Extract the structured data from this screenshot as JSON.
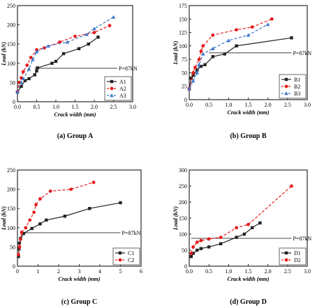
{
  "chart_data": [
    {
      "type": "line",
      "caption": "(a) Group A",
      "xlabel": "Crack width (mm)",
      "ylabel": "Load (kN)",
      "xlim": [
        0,
        3.0
      ],
      "ylim": [
        0,
        250
      ],
      "xticks": [
        "0.0",
        "0.5",
        "1.0",
        "1.5",
        "2.0",
        "2.5",
        "3.0"
      ],
      "yticks": [
        "0",
        "50",
        "100",
        "150",
        "200",
        "250"
      ],
      "reference": {
        "y": 87,
        "label": "P=87kN",
        "x_start": 0.45,
        "x_end": 2.6
      },
      "legend_position": "bottom-right",
      "series": [
        {
          "name": "A1",
          "color": "#222222",
          "dash": "solid",
          "marker": "square",
          "x": [
            0.0,
            0.1,
            0.2,
            0.3,
            0.45,
            0.5,
            0.52,
            0.9,
            1.0,
            1.2,
            1.6,
            1.85,
            2.1
          ],
          "y": [
            25,
            40,
            55,
            60,
            70,
            80,
            88,
            100,
            105,
            125,
            138,
            150,
            168
          ]
        },
        {
          "name": "A2",
          "color": "#e41a1c",
          "dash": "dashed",
          "marker": "circle",
          "x": [
            0.0,
            0.05,
            0.1,
            0.15,
            0.25,
            0.35,
            0.5,
            0.7,
            1.1,
            1.5,
            2.0,
            2.4
          ],
          "y": [
            25,
            50,
            62,
            78,
            95,
            115,
            135,
            140,
            155,
            170,
            180,
            198
          ]
        },
        {
          "name": "A3",
          "color": "#3a75c4",
          "dash": "dashed",
          "marker": "triangle",
          "x": [
            0.0,
            0.1,
            0.15,
            0.3,
            0.4,
            0.5,
            0.8,
            1.3,
            1.8,
            2.0,
            2.5
          ],
          "y": [
            25,
            50,
            60,
            85,
            110,
            130,
            145,
            155,
            175,
            190,
            220
          ]
        }
      ]
    },
    {
      "type": "line",
      "caption": "(b) Group B",
      "xlabel": "Crack width (mm)",
      "ylabel": "Load (kN)",
      "xlim": [
        0,
        3.0
      ],
      "ylim": [
        0,
        175
      ],
      "xticks": [
        "0.0",
        "0.5",
        "1.0",
        "1.5",
        "2.0",
        "2.5",
        "3.0"
      ],
      "yticks": [
        "0",
        "25",
        "50",
        "75",
        "100",
        "125",
        "150",
        "175"
      ],
      "reference": {
        "y": 87,
        "label": "P=87kN",
        "x_start": 0.5,
        "x_end": 2.6
      },
      "legend_position": "bottom-right",
      "series": [
        {
          "name": "B1",
          "color": "#222222",
          "dash": "solid",
          "marker": "square",
          "x": [
            0.0,
            0.05,
            0.1,
            0.2,
            0.3,
            0.4,
            0.6,
            0.9,
            1.2,
            2.6
          ],
          "y": [
            20,
            40,
            45,
            55,
            62,
            65,
            80,
            85,
            100,
            115
          ]
        },
        {
          "name": "B2",
          "color": "#e41a1c",
          "dash": "dashed",
          "marker": "circle",
          "x": [
            0.0,
            0.1,
            0.15,
            0.25,
            0.3,
            0.35,
            0.6,
            1.2,
            1.6,
            2.1
          ],
          "y": [
            20,
            50,
            60,
            75,
            90,
            100,
            120,
            130,
            135,
            150
          ]
        },
        {
          "name": "B3",
          "color": "#3a75c4",
          "dash": "dashed",
          "marker": "triangle",
          "x": [
            0.0,
            0.1,
            0.2,
            0.25,
            0.35,
            0.6,
            1.0,
            1.5,
            2.0
          ],
          "y": [
            20,
            35,
            50,
            65,
            85,
            95,
            110,
            120,
            140
          ]
        }
      ]
    },
    {
      "type": "line",
      "caption": "(c) Group C",
      "xlabel": "Crack width (mm)",
      "ylabel": "Load (kN)",
      "xlim": [
        0,
        6
      ],
      "ylim": [
        0,
        250
      ],
      "xticks": [
        "0",
        "1",
        "2",
        "3",
        "4",
        "5",
        "6"
      ],
      "yticks": [
        "0",
        "50",
        "100",
        "150",
        "200",
        "250"
      ],
      "reference": {
        "y": 87,
        "label": "P=87kN",
        "x_start": 0.2,
        "x_end": 5.0
      },
      "legend_position": "bottom-right",
      "series": [
        {
          "name": "C1",
          "color": "#222222",
          "dash": "solid",
          "marker": "square",
          "x": [
            0.05,
            0.08,
            0.1,
            0.15,
            0.3,
            0.7,
            1.1,
            1.4,
            2.3,
            3.5,
            5.0
          ],
          "y": [
            25,
            45,
            60,
            72,
            85,
            98,
            110,
            120,
            130,
            150,
            165
          ]
        },
        {
          "name": "C2",
          "color": "#e41a1c",
          "dash": "dashed",
          "marker": "circle",
          "x": [
            0.05,
            0.1,
            0.15,
            0.2,
            0.4,
            0.6,
            0.8,
            0.9,
            1.1,
            1.6,
            2.6,
            3.7
          ],
          "y": [
            30,
            50,
            70,
            88,
            100,
            120,
            140,
            160,
            175,
            195,
            200,
            218
          ]
        }
      ]
    },
    {
      "type": "line",
      "caption": "(d) Group D",
      "xlabel": "Crack width (mm)",
      "ylabel": "Load (kN)",
      "xlim": [
        0,
        3.0
      ],
      "ylim": [
        0,
        300
      ],
      "xticks": [
        "0.0",
        "0.5",
        "1.0",
        "1.5",
        "2.0",
        "2.5",
        "3.0"
      ],
      "yticks": [
        "0",
        "50",
        "100",
        "150",
        "200",
        "250",
        "300"
      ],
      "reference": {
        "y": 87,
        "label": "P=87kN",
        "x_start": 0.05,
        "x_end": 2.6
      },
      "legend_position": "bottom-right",
      "series": [
        {
          "name": "D1",
          "color": "#222222",
          "dash": "solid",
          "marker": "square",
          "x": [
            0.05,
            0.1,
            0.2,
            0.3,
            0.5,
            0.8,
            1.2,
            1.4,
            1.6,
            1.8
          ],
          "y": [
            30,
            40,
            50,
            55,
            60,
            70,
            90,
            100,
            120,
            135
          ]
        },
        {
          "name": "D2",
          "color": "#e41a1c",
          "dash": "dashed",
          "marker": "circle",
          "x": [
            0.05,
            0.1,
            0.2,
            0.3,
            0.5,
            0.8,
            1.2,
            1.5,
            2.6
          ],
          "y": [
            40,
            60,
            75,
            80,
            85,
            90,
            120,
            130,
            250
          ]
        }
      ]
    }
  ]
}
